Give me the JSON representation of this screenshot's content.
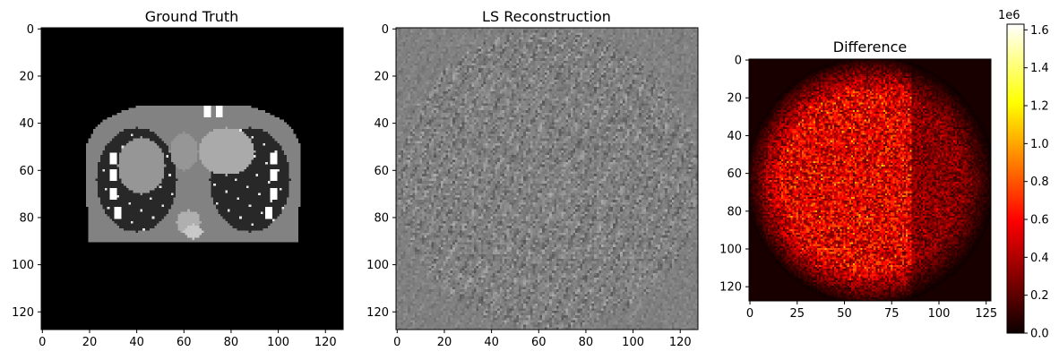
{
  "chart_data": [
    {
      "type": "heatmap",
      "title": "Ground Truth",
      "colormap": "gray",
      "image_size": [
        128,
        128
      ],
      "x_ticks": [
        "0",
        "20",
        "40",
        "60",
        "80",
        "100",
        "120"
      ],
      "y_ticks": [
        "0",
        "20",
        "40",
        "60",
        "80",
        "100",
        "120"
      ],
      "extent": [
        -0.5,
        127.5,
        127.5,
        -0.5
      ]
    },
    {
      "type": "heatmap",
      "title": "LS Reconstruction",
      "colormap": "gray",
      "image_size": [
        128,
        128
      ],
      "x_ticks": [
        "0",
        "20",
        "40",
        "60",
        "80",
        "100",
        "120"
      ],
      "y_ticks": [
        "0",
        "20",
        "40",
        "60",
        "80",
        "100",
        "120"
      ],
      "extent": [
        -0.5,
        127.5,
        127.5,
        -0.5
      ]
    },
    {
      "type": "heatmap",
      "title": "Difference",
      "colormap": "hot",
      "image_size": [
        128,
        128
      ],
      "x_ticks": [
        "0",
        "25",
        "50",
        "75",
        "100",
        "125"
      ],
      "y_ticks": [
        "0",
        "20",
        "40",
        "60",
        "80",
        "100",
        "120"
      ],
      "extent": [
        -0.5,
        127.5,
        127.5,
        -0.5
      ],
      "colorbar": {
        "min": 0.0,
        "max": 1.63,
        "ticks": [
          "0.0",
          "0.2",
          "0.4",
          "0.6",
          "0.8",
          "1.0",
          "1.2",
          "1.4",
          "1.6"
        ],
        "exponent_label": "1e6"
      }
    }
  ]
}
